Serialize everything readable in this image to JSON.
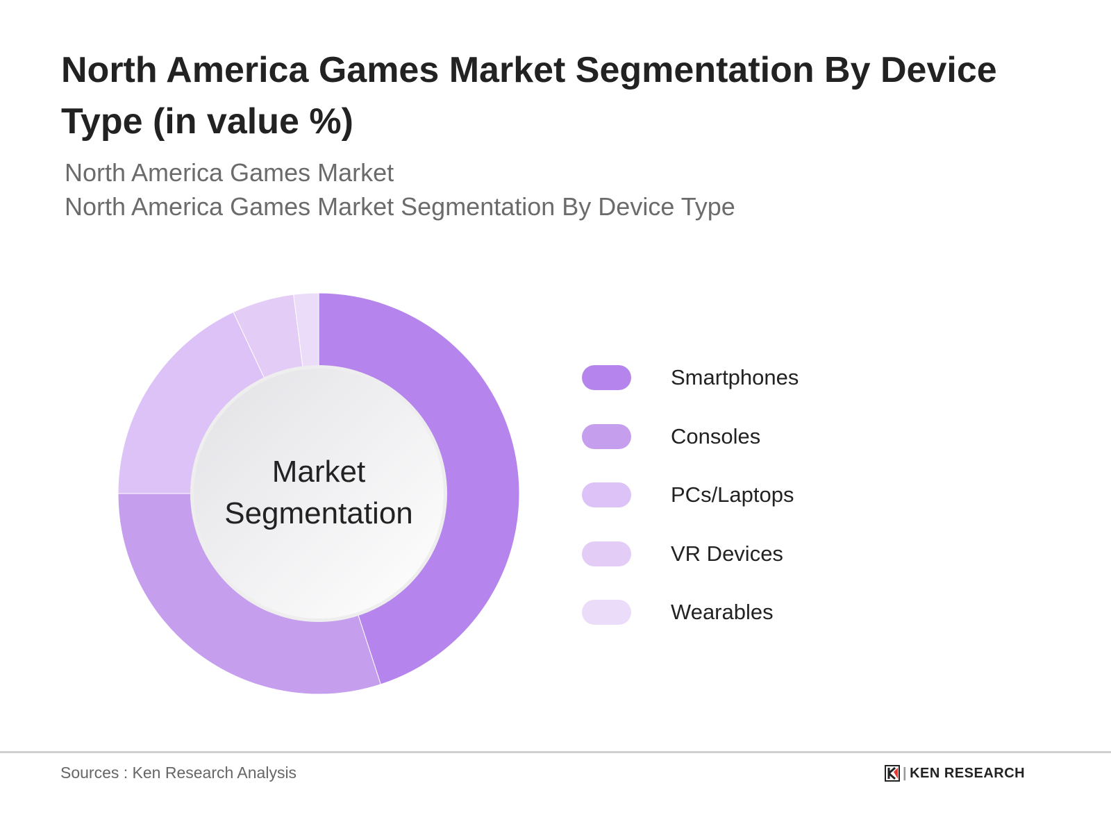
{
  "title": "North America Games Market Segmentation By Device Type (in value %)",
  "subtitle1": "North America Games Market",
  "subtitle2": "North America Games Market Segmentation By Device Type",
  "chart_data": {
    "type": "pie",
    "variant": "donut",
    "center_label": "Market Segmentation",
    "categories": [
      "Smartphones",
      "Consoles",
      "PCs/Laptops",
      "VR Devices",
      "Wearables"
    ],
    "values": [
      45,
      30,
      18,
      5,
      2
    ],
    "colors": [
      "#b584ec",
      "#c69eee",
      "#dcc2f6",
      "#e3cdf7",
      "#ebdcf9"
    ],
    "legend_position": "right"
  },
  "footer": {
    "source": "Sources : Ken Research Analysis",
    "logo_text": "KEN RESEARCH"
  }
}
